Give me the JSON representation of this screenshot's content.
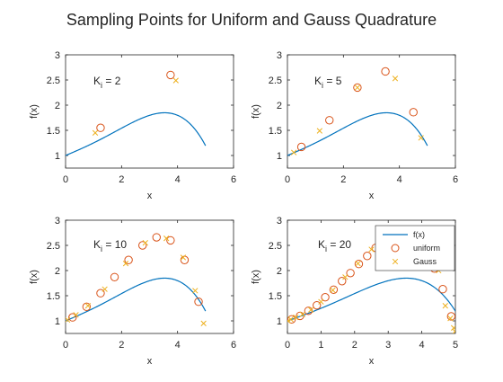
{
  "figure": {
    "title": "Sampling Points for Uniform and Gauss Quadrature"
  },
  "colors": {
    "curve": "#0072BD",
    "uniform": "#D95319",
    "gauss": "#EDB120",
    "axis": "#262626"
  },
  "legend": {
    "entries": [
      {
        "label": "f(x)",
        "marker": "line"
      },
      {
        "label": "uniform",
        "marker": "circle"
      },
      {
        "label": "Gauss",
        "marker": "cross"
      }
    ],
    "placement": "top-right of bottom-right panel"
  },
  "chart_data": [
    {
      "type": "scatter",
      "panel_label": "K",
      "panel_label_sub": "i",
      "panel_label_value": " = 2",
      "xlabel": "x",
      "ylabel": "f(x)",
      "xlim": [
        0,
        6
      ],
      "ylim": [
        0.75,
        3
      ],
      "xticks": [
        0,
        2,
        4,
        6
      ],
      "yticks": [
        1,
        1.5,
        2,
        2.5,
        3
      ],
      "curve_x_range": [
        0,
        5
      ],
      "series": [
        {
          "name": "f(x)",
          "kind": "line"
        },
        {
          "name": "uniform",
          "kind": "circle",
          "x": [
            1.25,
            3.75
          ],
          "y": [
            1.55,
            2.6
          ]
        },
        {
          "name": "Gauss",
          "kind": "cross",
          "x": [
            1.06,
            3.94
          ],
          "y": [
            1.45,
            2.49
          ]
        }
      ]
    },
    {
      "type": "scatter",
      "panel_label": "K",
      "panel_label_sub": "i",
      "panel_label_value": " = 5",
      "xlabel": "x",
      "ylabel": "f(x)",
      "xlim": [
        0,
        6
      ],
      "ylim": [
        0.75,
        3
      ],
      "xticks": [
        0,
        2,
        4,
        6
      ],
      "yticks": [
        1,
        1.5,
        2,
        2.5,
        3
      ],
      "curve_x_range": [
        0,
        5
      ],
      "series": [
        {
          "name": "f(x)",
          "kind": "line"
        },
        {
          "name": "uniform",
          "kind": "circle",
          "x": [
            0.5,
            1.5,
            2.5,
            3.5,
            4.5
          ],
          "y": [
            1.17,
            1.7,
            2.35,
            2.67,
            1.86
          ]
        },
        {
          "name": "Gauss",
          "kind": "cross",
          "x": [
            0.23,
            1.15,
            2.5,
            3.85,
            4.77
          ],
          "y": [
            1.06,
            1.49,
            2.35,
            2.53,
            1.35
          ]
        }
      ]
    },
    {
      "type": "scatter",
      "panel_label": "K",
      "panel_label_sub": "i",
      "panel_label_value": " = 10",
      "xlabel": "x",
      "ylabel": "f(x)",
      "xlim": [
        0,
        6
      ],
      "ylim": [
        0.75,
        3
      ],
      "xticks": [
        0,
        2,
        4,
        6
      ],
      "yticks": [
        1,
        1.5,
        2,
        2.5,
        3
      ],
      "curve_x_range": [
        0,
        5
      ],
      "series": [
        {
          "name": "f(x)",
          "kind": "line"
        },
        {
          "name": "uniform",
          "kind": "circle",
          "x": [
            0.25,
            0.75,
            1.25,
            1.75,
            2.25,
            2.75,
            3.25,
            3.75,
            4.25,
            4.75
          ],
          "y": [
            1.07,
            1.28,
            1.55,
            1.87,
            2.21,
            2.5,
            2.66,
            2.6,
            2.21,
            1.38
          ]
        },
        {
          "name": "Gauss",
          "kind": "cross",
          "x": [
            0.07,
            0.37,
            0.8,
            1.4,
            2.15,
            2.85,
            3.6,
            4.2,
            4.63,
            4.93
          ],
          "y": [
            1.02,
            1.12,
            1.3,
            1.63,
            2.14,
            2.55,
            2.64,
            2.26,
            1.6,
            0.95
          ]
        }
      ]
    },
    {
      "type": "scatter",
      "panel_label": "K",
      "panel_label_sub": "i",
      "panel_label_value": " = 20",
      "xlabel": "x",
      "ylabel": "f(x)",
      "xlim": [
        0,
        5
      ],
      "ylim": [
        0.75,
        3
      ],
      "xticks": [
        0,
        1,
        2,
        3,
        4,
        5
      ],
      "yticks": [
        1,
        1.5,
        2,
        2.5,
        3
      ],
      "curve_x_range": [
        0,
        5
      ],
      "series": [
        {
          "name": "f(x)",
          "kind": "line"
        },
        {
          "name": "uniform",
          "kind": "circle",
          "x": [
            0.125,
            0.375,
            0.625,
            0.875,
            1.125,
            1.375,
            1.625,
            1.875,
            2.125,
            2.375,
            2.625,
            2.875,
            3.125,
            3.375,
            3.625,
            3.875,
            4.125,
            4.375,
            4.625,
            4.875
          ],
          "y": [
            1.03,
            1.1,
            1.2,
            1.31,
            1.47,
            1.62,
            1.79,
            1.95,
            2.13,
            2.29,
            2.45,
            2.56,
            2.65,
            2.67,
            2.62,
            2.48,
            2.27,
            2.04,
            1.63,
            1.09
          ]
        },
        {
          "name": "Gauss",
          "kind": "cross",
          "x": [
            0.02,
            0.1,
            0.25,
            0.45,
            0.7,
            1.0,
            1.35,
            1.72,
            2.1,
            2.5,
            2.9,
            3.28,
            3.65,
            3.98,
            4.28,
            4.5,
            4.7,
            4.85,
            4.95,
            4.99
          ],
          "y": [
            1.0,
            1.03,
            1.07,
            1.13,
            1.22,
            1.38,
            1.61,
            1.87,
            2.14,
            2.42,
            2.6,
            2.66,
            2.62,
            2.5,
            2.28,
            2.0,
            1.3,
            1.05,
            0.86,
            0.79
          ]
        }
      ]
    }
  ]
}
